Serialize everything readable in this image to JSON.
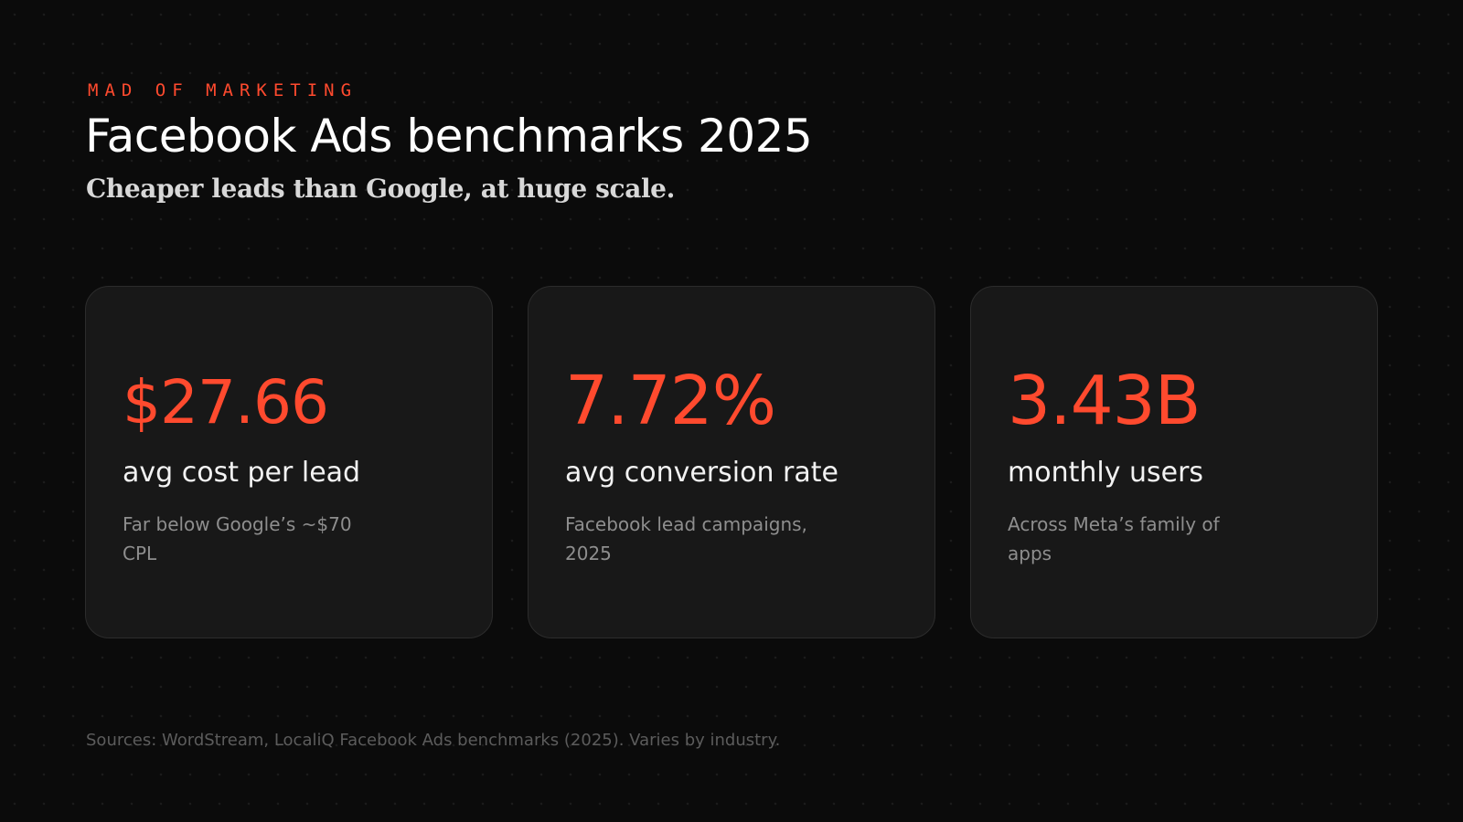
{
  "header": {
    "eyebrow": "MAD OF MARKETING",
    "title": "Facebook Ads benchmarks 2025",
    "subtitle": "Cheaper leads than Google, at huge scale."
  },
  "cards": [
    {
      "value": "$27.66",
      "label": "avg cost per lead",
      "note": "Far below Google’s ~$70 CPL"
    },
    {
      "value": "7.72%",
      "label": "avg conversion rate",
      "note": "Facebook lead campaigns, 2025"
    },
    {
      "value": "3.43B",
      "label": "monthly users",
      "note": "Across Meta’s family of apps"
    }
  ],
  "footer": {
    "sources": "Sources: WordStream, LocaliQ Facebook Ads benchmarks (2025). Varies by industry."
  },
  "colors": {
    "background": "#0b0b0b",
    "card": "#181818",
    "accent": "#ff4a2e",
    "text": "#ffffff",
    "muted": "#8e8e8e"
  }
}
